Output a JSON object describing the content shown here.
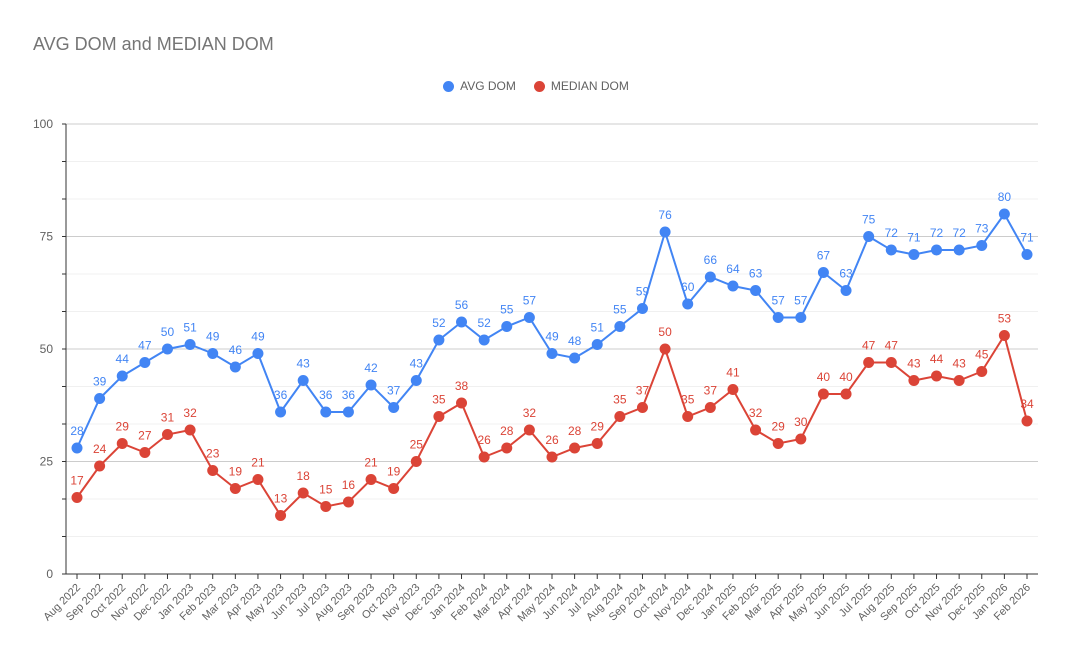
{
  "chart_data": {
    "type": "line",
    "title": "AVG DOM and MEDIAN DOM",
    "xlabel": "",
    "ylabel": "",
    "ylim": [
      0,
      100
    ],
    "yticks": [
      "0",
      "25",
      "50",
      "75",
      "100"
    ],
    "grid": true,
    "legend_position": "top",
    "categories": [
      "Aug 2022",
      "Sep 2022",
      "Oct 2022",
      "Nov 2022",
      "Dec 2022",
      "Jan 2023",
      "Feb 2023",
      "Mar 2023",
      "Apr 2023",
      "May 2023",
      "Jun 2023",
      "Jul 2023",
      "Aug 2023",
      "Sep 2023",
      "Oct 2023",
      "Nov 2023",
      "Dec 2023",
      "Jan 2024",
      "Feb 2024",
      "Mar 2024",
      "Apr 2024",
      "May 2024",
      "Jun 2024",
      "Jul 2024",
      "Aug 2024",
      "Sep 2024",
      "Oct 2024",
      "Nov 2024",
      "Dec 2024",
      "Jan 2025",
      "Feb 2025",
      "Mar 2025",
      "Apr 2025",
      "May 2025",
      "Jun 2025",
      "Jul 2025",
      "Aug 2025",
      "Sep 2025",
      "Oct 2025",
      "Nov 2025",
      "Dec 2025",
      "Jan 2026",
      "Feb 2026"
    ],
    "series": [
      {
        "name": "AVG DOM",
        "color": "#4285f4",
        "values": [
          28,
          39,
          44,
          47,
          50,
          51,
          49,
          46,
          49,
          36,
          43,
          36,
          36,
          42,
          37,
          43,
          52,
          56,
          52,
          55,
          57,
          49,
          48,
          51,
          55,
          59,
          76,
          60,
          66,
          64,
          63,
          57,
          57,
          67,
          63,
          75,
          72,
          71,
          72,
          72,
          73,
          80,
          71
        ]
      },
      {
        "name": "MEDIAN DOM",
        "color": "#db4437",
        "values": [
          17,
          24,
          29,
          27,
          31,
          32,
          23,
          19,
          21,
          13,
          18,
          15,
          16,
          21,
          19,
          25,
          35,
          38,
          26,
          28,
          32,
          26,
          28,
          29,
          35,
          37,
          50,
          35,
          37,
          41,
          32,
          29,
          30,
          40,
          40,
          47,
          47,
          43,
          44,
          43,
          45,
          53,
          34
        ]
      }
    ]
  }
}
